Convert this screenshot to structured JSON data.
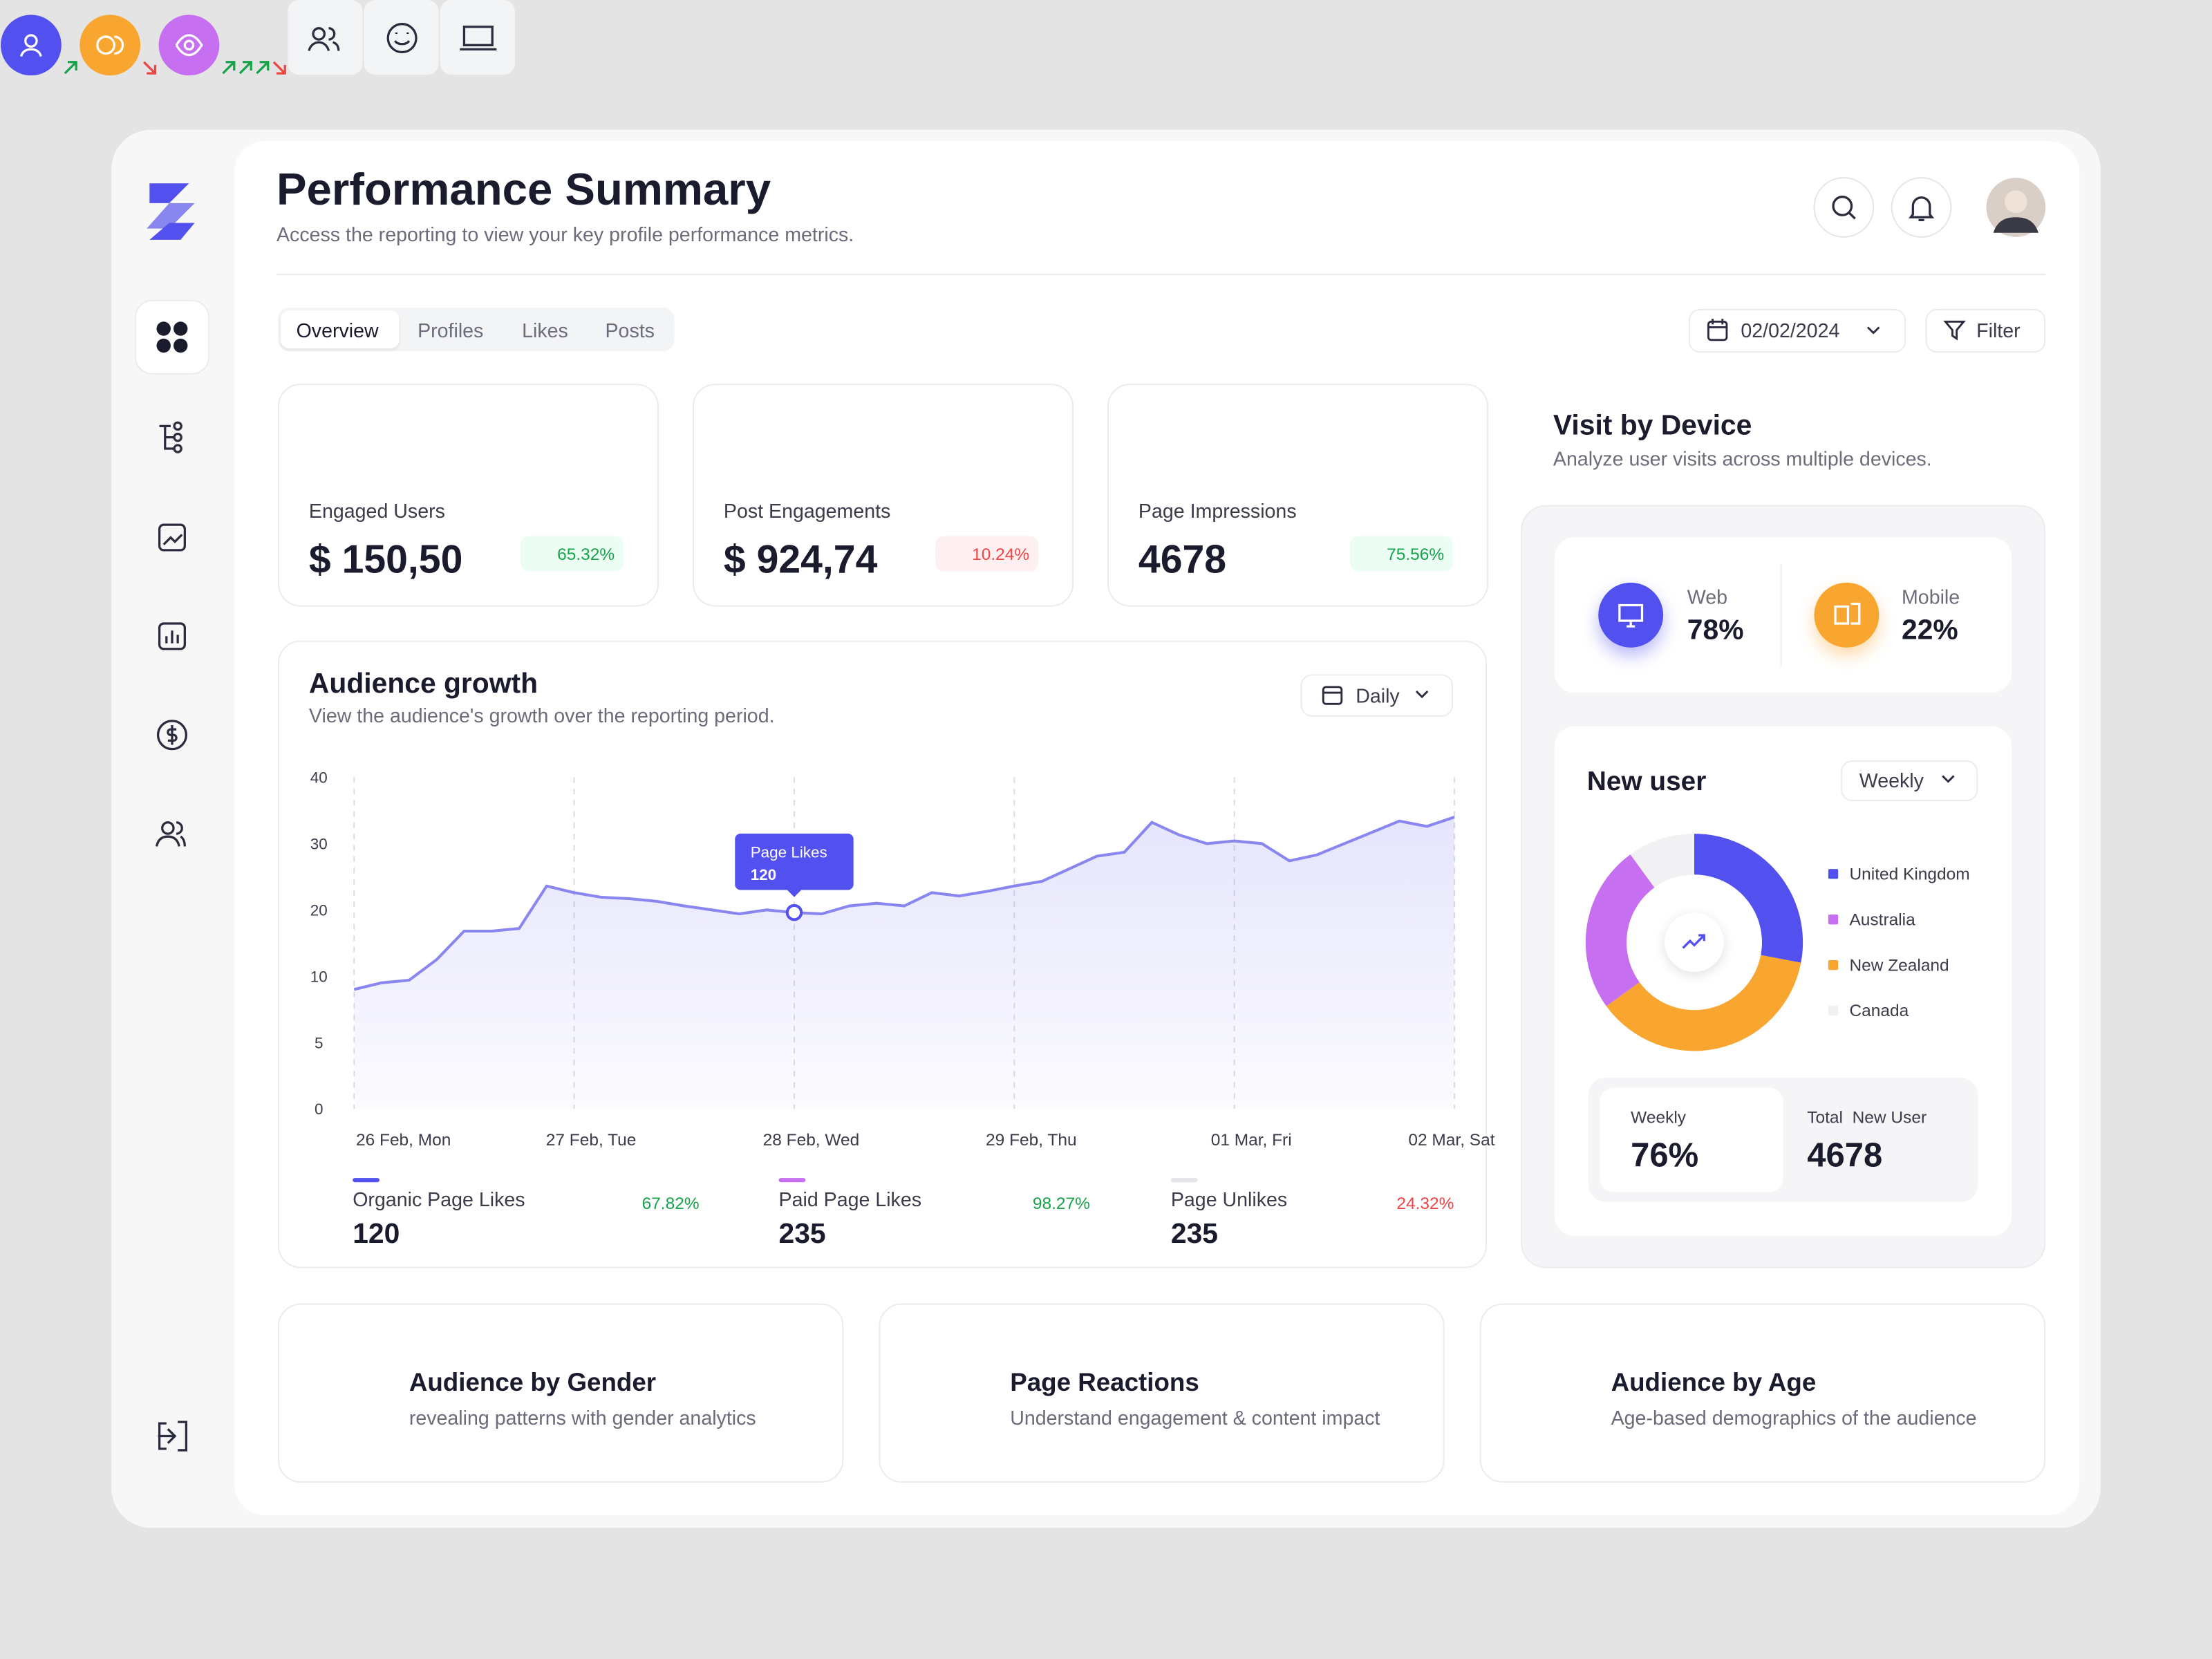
{
  "header": {
    "title": "Performance Summary",
    "subtitle": "Access the reporting to view your key profile performance metrics."
  },
  "tabs": [
    "Overview",
    "Profiles",
    "Likes",
    "Posts"
  ],
  "date": "02/02/2024",
  "filter": "Filter",
  "stats": [
    {
      "label": "Engaged Users",
      "value": "$ 150,50",
      "change": "65.32%",
      "trend": "up",
      "color": "#5250ee"
    },
    {
      "label": "Post Engagements",
      "value": "$ 924,74",
      "change": "10.24%",
      "trend": "down",
      "color": "#f9a631"
    },
    {
      "label": "Page  Impressions",
      "value": "4678",
      "change": "75.56%",
      "trend": "up",
      "color": "#c66ff0"
    }
  ],
  "audience_growth": {
    "title": "Audience growth",
    "subtitle": "View the audience's growth over the reporting period.",
    "period": "Daily",
    "chart": {
      "type": "area",
      "color": "#8a86f0",
      "categories": [
        "26 Feb, Mon",
        null,
        null,
        null,
        null,
        null,
        null,
        null,
        "27 Feb, Tue",
        null,
        null,
        null,
        null,
        null,
        null,
        null,
        "28 Feb, Wed",
        null,
        null,
        null,
        null,
        null,
        null,
        null,
        "29 Feb, Thu",
        null,
        null,
        null,
        null,
        null,
        null,
        null,
        "01 Mar, Fri",
        null,
        null,
        null,
        null,
        null,
        null,
        null,
        "02 Mar, Sat"
      ],
      "values": [
        9,
        9.5,
        9.7,
        12.5,
        16.8,
        16.8,
        17.2,
        23.6,
        22.6,
        21.9,
        21.7,
        21.3,
        20.6,
        20,
        19.4,
        20,
        19.6,
        19.4,
        20.6,
        21,
        20.6,
        22.6,
        22.1,
        22.8,
        23.6,
        24.3,
        26.2,
        28.1,
        28.7,
        33.2,
        31.3,
        30,
        30.4,
        30,
        27.4,
        28.3,
        30,
        31.7,
        33.4,
        32.6,
        34
      ],
      "ylim": [
        0,
        40
      ],
      "yticks": [
        0,
        5,
        10,
        20,
        30,
        40
      ],
      "tooltip": {
        "index": 16,
        "label": "Page Likes",
        "value": "120"
      }
    },
    "metrics": [
      {
        "name": "Organic Page Likes",
        "value": "120",
        "change": "67.82%",
        "trend": "up",
        "color": "#5250ee"
      },
      {
        "name": "Paid Page Likes",
        "value": "235",
        "change": "98.27%",
        "trend": "up",
        "color": "#c66ff0"
      },
      {
        "name": "Page Unlikes",
        "value": "235",
        "change": "24.32%",
        "trend": "down",
        "color": "#e4e4ea"
      }
    ]
  },
  "visit_by_device": {
    "title": "Visit by Device",
    "subtitle": "Analyze user visits across multiple devices.",
    "devices": [
      {
        "name": "Web",
        "value": "78%",
        "color": "#5250ee"
      },
      {
        "name": "Mobile",
        "value": "22%",
        "color": "#f9a631"
      }
    ]
  },
  "new_user": {
    "title": "New user",
    "period": "Weekly",
    "chart": {
      "type": "donut",
      "categories": [
        "United Kingdom",
        "Australia",
        "New Zealand",
        "Canada"
      ],
      "values": [
        28,
        25,
        37,
        10
      ],
      "colors": [
        "#5250ee",
        "#c66ff0",
        "#f9a631",
        "#f1f1f4"
      ]
    },
    "weekly_label": "Weekly",
    "weekly_value": "76%",
    "total_label": "Total  New User",
    "total_value": "4678"
  },
  "cards": [
    {
      "title": "Audience by Gender",
      "subtitle": "revealing patterns with gender analytics"
    },
    {
      "title": "Page Reactions",
      "subtitle": "Understand engagement & content impact"
    },
    {
      "title": "Audience by Age",
      "subtitle": "Age-based demographics of the audience"
    }
  ]
}
